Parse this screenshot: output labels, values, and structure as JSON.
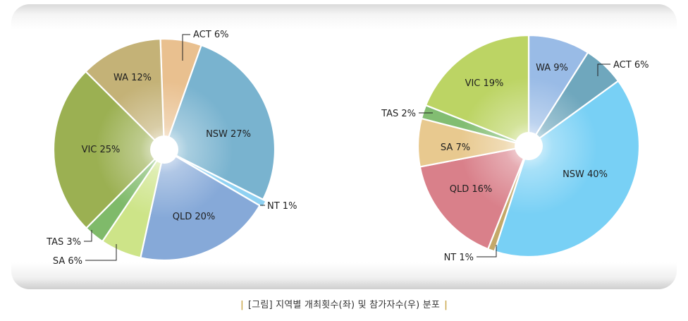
{
  "chart_data": [
    {
      "type": "pie",
      "slices": [
        {
          "label": "ACT",
          "value": 6,
          "text": "ACT 6%",
          "color": "#e9c08f"
        },
        {
          "label": "NSW",
          "value": 27,
          "text": "NSW 27%",
          "color": "#79b3cf"
        },
        {
          "label": "NT",
          "value": 1,
          "text": "NT 1%",
          "color": "#8fd1f2"
        },
        {
          "label": "QLD",
          "value": 20,
          "text": "QLD 20%",
          "color": "#86a9d8"
        },
        {
          "label": "SA",
          "value": 6,
          "text": "SA 6%",
          "color": "#cde488"
        },
        {
          "label": "TAS",
          "value": 3,
          "text": "TAS 3%",
          "color": "#7fba6a"
        },
        {
          "label": "VIC",
          "value": 25,
          "text": "VIC 25%",
          "color": "#9bb052"
        },
        {
          "label": "WA",
          "value": 12,
          "text": "WA 12%",
          "color": "#c4b277"
        }
      ]
    },
    {
      "type": "pie",
      "slices": [
        {
          "label": "WA",
          "value": 9,
          "text": "WA 9%",
          "color": "#99bbe6"
        },
        {
          "label": "ACT",
          "value": 6,
          "text": "ACT 6%",
          "color": "#6fa7bd"
        },
        {
          "label": "NSW",
          "value": 40,
          "text": "NSW 40%",
          "color": "#78d0f5"
        },
        {
          "label": "NT",
          "value": 1,
          "text": "NT 1%",
          "color": "#c4a868"
        },
        {
          "label": "QLD",
          "value": 16,
          "text": "QLD 16%",
          "color": "#d9808a"
        },
        {
          "label": "SA",
          "value": 7,
          "text": "SA 7%",
          "color": "#e8c98f"
        },
        {
          "label": "TAS",
          "value": 2,
          "text": "TAS 2%",
          "color": "#82bd72"
        },
        {
          "label": "VIC",
          "value": 19,
          "text": "VIC 19%",
          "color": "#bcd464"
        }
      ]
    }
  ],
  "caption": {
    "bar_left": "|",
    "text": "[그림] 지역별 개최횟수(좌) 및 참가자수(우) 분포",
    "bar_right": "|"
  }
}
